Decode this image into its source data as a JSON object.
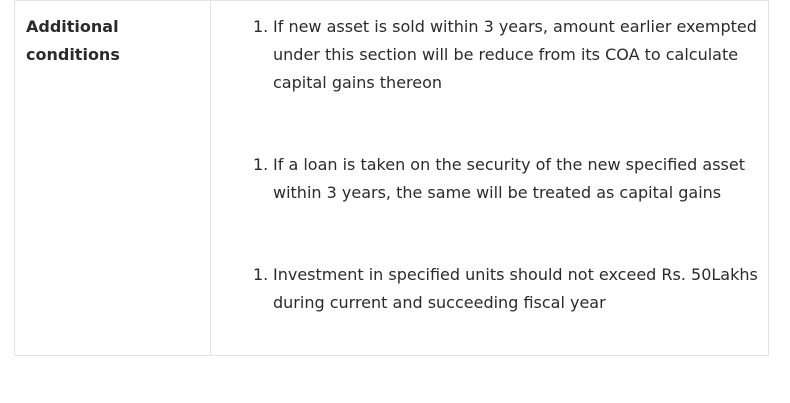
{
  "table": {
    "label": "Additional conditions",
    "conditions": [
      {
        "number": "1.",
        "text": "If new asset is sold within 3 years, amount earlier exempted under this section will be reduce from its COA to calculate capital gains thereon"
      },
      {
        "number": "1.",
        "text": "If a loan is taken on the security of the new specified asset within 3 years, the same will be treated as capital gains"
      },
      {
        "number": "1.",
        "text": "Investment in specified units should not exceed Rs. 50Lakhs during current and succeeding fiscal year"
      }
    ]
  }
}
